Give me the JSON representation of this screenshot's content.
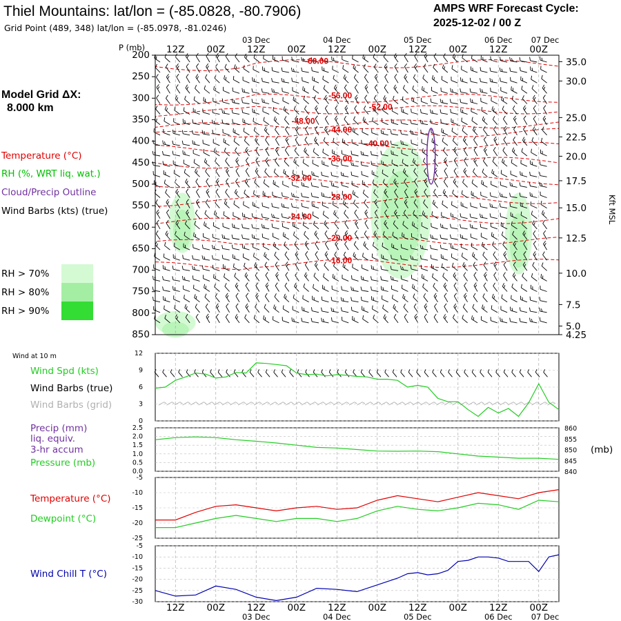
{
  "header": {
    "title": "Thiel Mountains:  lat/lon = (-85.0828, -80.7906)",
    "subtitle": "Grid Point (489, 348) lat/lon = (-85.0978, -81.0246)",
    "cycle_label": "AMPS WRF Forecast Cycle:",
    "cycle_value": "2025-12-02 / 00  Z"
  },
  "side": {
    "model_grid_label": "Model Grid ΔX:",
    "model_grid_value": "8.000 km",
    "temperature": "Temperature (°C)",
    "rh": "RH (%, WRT liq. wat.)",
    "cloud": "Cloud/Precip Outline",
    "wind_barbs": "Wind Barbs (kts) (true)",
    "rh_legend": [
      "RH > 70%",
      "RH > 80%",
      "RH > 90%"
    ],
    "wind10": "Wind at 10 m",
    "wind_spd": "Wind Spd (kts)",
    "wind_barbs_true": "Wind Barbs (true)",
    "wind_barbs_grid": "Wind Barbs (grid)",
    "precip": "Precip (mm)",
    "liq": "liq. equiv.",
    "accum": "3-hr accum",
    "pressure": "Pressure (mb)",
    "mb": "(mb)",
    "temp2": "Temperature (°C)",
    "dewpoint": "Dewpoint (°C)",
    "windchill": "Wind Chill T (°C)",
    "p_mb": "P (mb)",
    "kft": "Kft MSL"
  },
  "colors": {
    "temperature": "#e00000",
    "rh_text": "#00c000",
    "cloud": "#7030a0",
    "rh70": "#d4fad4",
    "rh80": "#a3eea3",
    "rh90": "#33dd33",
    "wind_spd": "#22cc22",
    "grid_barb": "#b0b0b0",
    "windchill": "#0000b0"
  },
  "chart_data": [
    {
      "type": "heatmap",
      "name": "time-height cross section",
      "time_ticks": [
        "12Z",
        "00Z",
        "12Z",
        "00Z",
        "12Z",
        "00Z",
        "12Z",
        "00Z",
        "12Z",
        "00Z"
      ],
      "date_ticks": [
        "03 Dec",
        "04 Dec",
        "05 Dec",
        "06 Dec",
        "07 Dec"
      ],
      "forecast_hours": [
        0,
        120
      ],
      "pressure_ticks": [
        200,
        250,
        300,
        350,
        400,
        450,
        500,
        550,
        600,
        650,
        700,
        750,
        800,
        850
      ],
      "ylim": [
        200,
        850
      ],
      "height_ticks_kft": [
        "35.0",
        "30.0",
        "25.0",
        "22.5",
        "20.0",
        "17.5",
        "15.0",
        "12.5",
        "10.0",
        "7.5",
        "5.0",
        "4.25"
      ],
      "height_tick_pressures": [
        215,
        260,
        345,
        390,
        435,
        492,
        555,
        625,
        707,
        780,
        830,
        850
      ],
      "temperature_contour_labels": [
        {
          "text": "-60.00",
          "hour": 48,
          "p": 220
        },
        {
          "text": "-56.00",
          "hour": 55,
          "p": 300
        },
        {
          "text": "-52.00",
          "hour": 67,
          "p": 327
        },
        {
          "text": "-48.00",
          "hour": 44,
          "p": 360
        },
        {
          "text": "-44.00",
          "hour": 55,
          "p": 380
        },
        {
          "text": "-40.00",
          "hour": 66,
          "p": 412
        },
        {
          "text": "-36.00",
          "hour": 55,
          "p": 447
        },
        {
          "text": "-32.00",
          "hour": 43,
          "p": 492
        },
        {
          "text": "-28.00",
          "hour": 55,
          "p": 536
        },
        {
          "text": "-24.00",
          "hour": 43,
          "p": 582
        },
        {
          "text": "-20.00",
          "hour": 55,
          "p": 632
        },
        {
          "text": "-16.00",
          "hour": 55,
          "p": 684
        }
      ],
      "rh_regions_above_70pct": [
        {
          "hours": [
            4,
            12
          ],
          "p": [
            520,
            660
          ]
        },
        {
          "hours": [
            64,
            82
          ],
          "p": [
            400,
            720
          ]
        },
        {
          "hours": [
            104,
            112
          ],
          "p": [
            520,
            710
          ]
        },
        {
          "hours": [
            0,
            12
          ],
          "p": [
            795,
            850
          ]
        }
      ],
      "cloud_outline": {
        "hour": 82,
        "p": [
          370,
          500
        ]
      }
    },
    {
      "type": "line",
      "name": "wind speed 10 m",
      "ylabel": "Wind Spd (kts)",
      "ylim": [
        0,
        12
      ],
      "yticks": [
        0,
        3,
        6,
        9,
        12
      ],
      "x": [
        0,
        3,
        6,
        9,
        12,
        15,
        18,
        21,
        24,
        27,
        30,
        33,
        36,
        39,
        42,
        45,
        48,
        51,
        54,
        57,
        60,
        63,
        66,
        69,
        72,
        75,
        78,
        81,
        84,
        87,
        90,
        93,
        96,
        99,
        102,
        105,
        108,
        111,
        114,
        117,
        120
      ],
      "values": [
        5.8,
        6.0,
        7.2,
        7.8,
        8.5,
        8.3,
        7.6,
        7.8,
        8.6,
        8.5,
        10.3,
        10.2,
        10.0,
        9.8,
        8.5,
        8.2,
        8.3,
        8.0,
        8.2,
        8.1,
        7.9,
        7.8,
        7.4,
        7.4,
        7.2,
        6.0,
        6.3,
        6.0,
        4.0,
        3.4,
        3.4,
        2.0,
        0.8,
        2.4,
        1.4,
        2.2,
        0.8,
        3.2,
        6.6,
        3.3,
        2.0
      ]
    },
    {
      "type": "line",
      "name": "surface pressure and precip",
      "ylabel": "Pressure (mb)",
      "ylim_precip": [
        0,
        2.5
      ],
      "precip_ticks": [
        "0.0",
        "0.5",
        "1.0",
        "1.5",
        "2.0",
        "2.5"
      ],
      "ylim": [
        840,
        860
      ],
      "pressure_ticks": [
        "840",
        "845",
        "850",
        "855",
        "860"
      ],
      "x": [
        0,
        6,
        12,
        18,
        24,
        30,
        36,
        42,
        48,
        54,
        60,
        66,
        72,
        78,
        84,
        90,
        96,
        102,
        108,
        114,
        120
      ],
      "pressure": [
        854.5,
        855.5,
        855.8,
        855.5,
        854.5,
        853.8,
        853.0,
        852.0,
        851.0,
        850.7,
        850.0,
        849.3,
        849.2,
        849.3,
        849.0,
        848.0,
        847.0,
        846.5,
        846.0,
        846.0,
        845.5
      ],
      "precip": [
        0,
        0,
        0,
        0,
        0,
        0,
        0,
        0,
        0,
        0,
        0,
        0,
        0,
        0,
        0,
        0,
        0,
        0,
        0,
        0,
        0
      ]
    },
    {
      "type": "line",
      "name": "temperature and dewpoint",
      "ylim": [
        -25,
        -5
      ],
      "yticks": [
        -25,
        -20,
        -15,
        -10,
        -5
      ],
      "x": [
        0,
        6,
        12,
        18,
        24,
        30,
        36,
        42,
        48,
        54,
        60,
        66,
        72,
        78,
        84,
        90,
        96,
        102,
        108,
        114,
        120
      ],
      "series": [
        {
          "name": "Temperature (°C)",
          "values": [
            -19.0,
            -19.0,
            -16.5,
            -14.5,
            -14.0,
            -15.0,
            -16.0,
            -15.0,
            -14.5,
            -15.5,
            -15.0,
            -12.5,
            -11.0,
            -12.0,
            -13.0,
            -11.5,
            -10.0,
            -11.0,
            -12.0,
            -10.0,
            -9.0
          ]
        },
        {
          "name": "Dewpoint (°C)",
          "values": [
            -21.5,
            -21.5,
            -20.0,
            -18.5,
            -17.5,
            -18.5,
            -19.5,
            -18.5,
            -18.5,
            -19.5,
            -18.5,
            -16.0,
            -14.5,
            -15.5,
            -16.0,
            -15.0,
            -13.5,
            -14.0,
            -15.5,
            -12.5,
            -13.0
          ]
        }
      ]
    },
    {
      "type": "line",
      "name": "wind chill",
      "ylim": [
        -30,
        -5
      ],
      "yticks": [
        -30,
        -25,
        -20,
        -15,
        -10,
        -5
      ],
      "x": [
        0,
        6,
        12,
        18,
        24,
        30,
        36,
        42,
        48,
        54,
        60,
        66,
        72,
        75,
        78,
        81,
        84,
        87,
        90,
        93,
        96,
        99,
        102,
        105,
        108,
        111,
        114,
        117,
        120
      ],
      "values": [
        -25.0,
        -27.5,
        -27.0,
        -23.0,
        -24.5,
        -28.0,
        -29.5,
        -28.0,
        -24.0,
        -24.5,
        -25.5,
        -22.5,
        -19.5,
        -17.5,
        -17.0,
        -18.0,
        -17.5,
        -16.0,
        -12.0,
        -11.5,
        -10.0,
        -10.0,
        -10.5,
        -12.0,
        -12.0,
        -12.0,
        -16.5,
        -10.0,
        -9.0
      ]
    }
  ]
}
